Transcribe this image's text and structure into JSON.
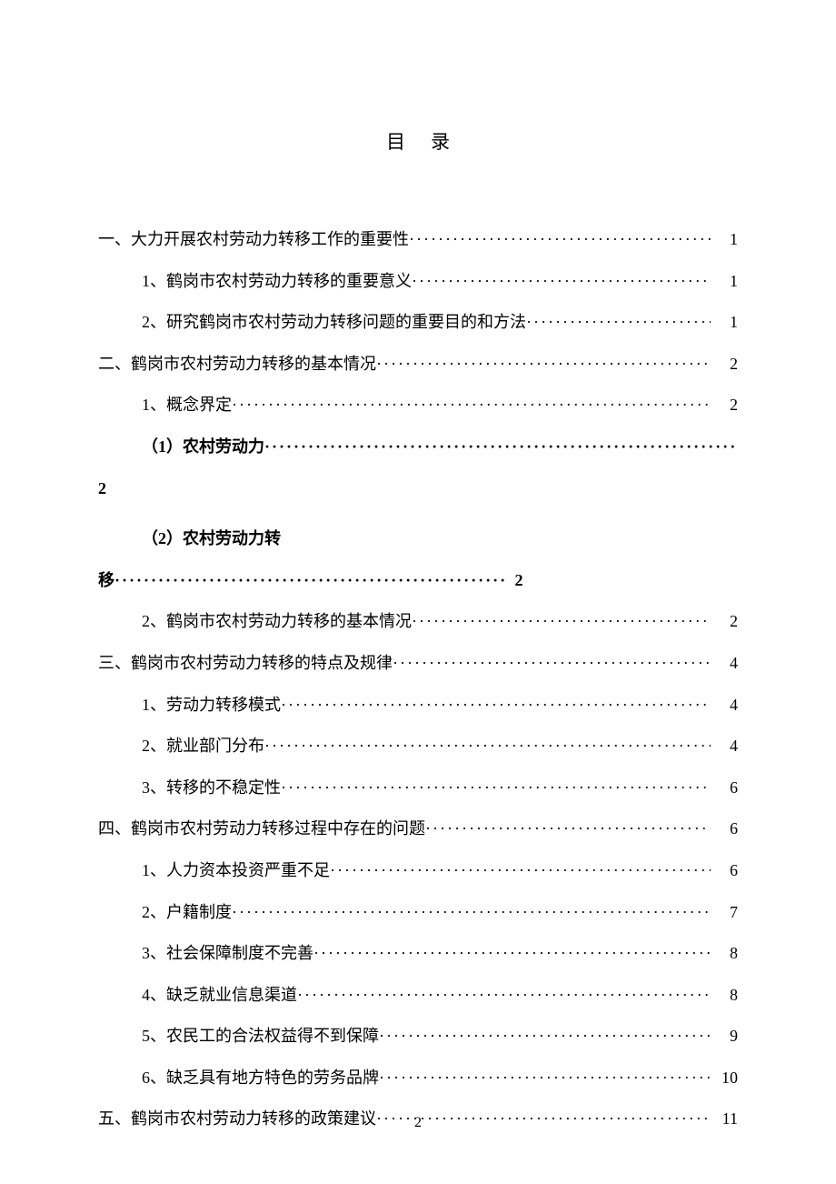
{
  "title": "目录",
  "footer_page_number": "2",
  "entries": [
    {
      "level": 1,
      "bold": false,
      "num": "一、",
      "text": "大力开展农村劳动力转移工作的重要性",
      "page": "1"
    },
    {
      "level": 2,
      "bold": false,
      "num": "1、",
      "text": "鹤岗市农村劳动力转移的重要意义",
      "page": "1"
    },
    {
      "level": 2,
      "bold": false,
      "num": "2、",
      "text": "研究鹤岗市农村劳动力转移问题的重要目的和方法",
      "page": "1"
    },
    {
      "level": 1,
      "bold": false,
      "num": "二、",
      "text": "鹤岗市农村劳动力转移的基本情况",
      "page": "2"
    },
    {
      "level": 2,
      "bold": false,
      "num": "1、",
      "text": "概念界定",
      "page": "2"
    },
    {
      "level": 3,
      "bold": true,
      "num": "",
      "text": "（1）农村劳动力",
      "page": "",
      "wrap": true,
      "wrap_page": "2"
    },
    {
      "level": 3,
      "bold": true,
      "num": "",
      "text": "（2）农村劳动力转",
      "page": "",
      "wrap_line2": "移",
      "wrap_page2": "2"
    },
    {
      "level": 2,
      "bold": false,
      "num": "2、",
      "text": "鹤岗市农村劳动力转移的基本情况",
      "page": "2"
    },
    {
      "level": 1,
      "bold": false,
      "num": "三、",
      "text": "鹤岗市农村劳动力转移的特点及规律",
      "page": "4"
    },
    {
      "level": 2,
      "bold": false,
      "num": "1、",
      "text": "劳动力转移模式",
      "page": "4"
    },
    {
      "level": 2,
      "bold": false,
      "num": "2、",
      "text": "就业部门分布",
      "page": "4"
    },
    {
      "level": 2,
      "bold": false,
      "num": "3、",
      "text": "转移的不稳定性",
      "page": "6"
    },
    {
      "level": 1,
      "bold": false,
      "num": "四、",
      "text": "鹤岗市农村劳动力转移过程中存在的问题",
      "page": "6"
    },
    {
      "level": 2,
      "bold": false,
      "num": "1、",
      "text": "人力资本投资严重不足",
      "page": "6"
    },
    {
      "level": 2,
      "bold": false,
      "num": "2、",
      "text": "户籍制度",
      "page": "7"
    },
    {
      "level": 2,
      "bold": false,
      "num": "3、",
      "text": "社会保障制度不完善",
      "page": "8"
    },
    {
      "level": 2,
      "bold": false,
      "num": "4、",
      "text": "缺乏就业信息渠道",
      "page": "8"
    },
    {
      "level": 2,
      "bold": false,
      "num": "5、",
      "text": "农民工的合法权益得不到保障",
      "page": "9"
    },
    {
      "level": 2,
      "bold": false,
      "num": "6、",
      "text": "缺乏具有地方特色的劳务品牌",
      "page": "10"
    },
    {
      "level": 1,
      "bold": false,
      "num": "五、",
      "text": "鹤岗市农村劳动力转移的政策建议",
      "page": "11"
    }
  ]
}
